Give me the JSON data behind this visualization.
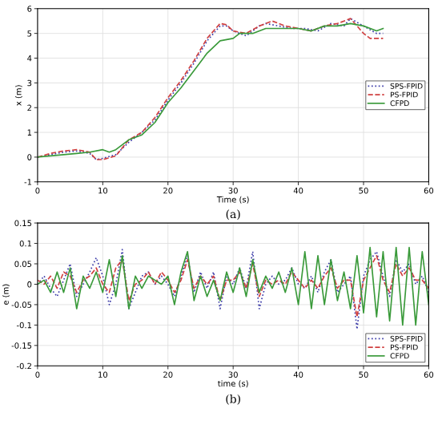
{
  "chart_data": [
    {
      "type": "line",
      "xlabel": "Time (s)",
      "ylabel": "x (m)",
      "annotations": [
        "(a)"
      ],
      "xlim": [
        0,
        60
      ],
      "xticks": [
        0,
        10,
        20,
        30,
        40,
        50,
        60
      ],
      "ylim": [
        -1,
        6
      ],
      "yticks": [
        -1,
        0,
        1,
        2,
        3,
        4,
        5,
        6
      ],
      "grid": true,
      "legend": "center right",
      "series": [
        {
          "name": "SPS-FPID",
          "color": "#3a3aa8",
          "line_style": "dotted",
          "x": [
            0,
            2,
            4,
            6,
            8,
            9,
            10,
            12,
            14,
            16,
            18,
            20,
            22,
            24,
            26,
            28,
            29,
            30,
            32,
            34,
            35,
            37,
            39,
            41,
            43,
            45,
            47,
            48,
            50,
            52,
            53
          ],
          "values": [
            0,
            0.1,
            0.2,
            0.25,
            0.15,
            -0.1,
            -0.05,
            0.1,
            0.6,
            1.0,
            1.5,
            2.3,
            3.0,
            3.8,
            4.7,
            5.3,
            5.3,
            5.1,
            4.9,
            5.3,
            5.4,
            5.3,
            5.2,
            5.2,
            5.1,
            5.4,
            5.3,
            5.6,
            5.3,
            5.0,
            5.0
          ]
        },
        {
          "name": "PS-FPID",
          "color": "#d04040",
          "line_style": "dashed",
          "x": [
            0,
            2,
            4,
            6,
            8,
            9,
            10,
            12,
            14,
            16,
            18,
            20,
            22,
            24,
            26,
            28,
            29,
            30,
            32,
            34,
            36,
            38,
            40,
            42,
            44,
            46,
            48,
            50,
            51,
            53
          ],
          "values": [
            0,
            0.15,
            0.25,
            0.3,
            0.2,
            -0.1,
            -0.1,
            0.05,
            0.7,
            1.0,
            1.6,
            2.4,
            3.1,
            3.9,
            4.8,
            5.4,
            5.35,
            5.1,
            5.0,
            5.3,
            5.5,
            5.3,
            5.2,
            5.1,
            5.3,
            5.4,
            5.6,
            5.0,
            4.8,
            4.8
          ]
        },
        {
          "name": "CFPD",
          "color": "#3a9a3a",
          "line_style": "solid",
          "x": [
            0,
            4,
            6,
            8,
            10,
            11,
            12,
            14,
            16,
            18,
            20,
            22,
            24,
            26,
            28,
            30,
            31,
            33,
            35,
            38,
            40,
            42,
            44,
            46,
            48,
            50,
            52,
            53
          ],
          "values": [
            0,
            0.1,
            0.15,
            0.2,
            0.3,
            0.2,
            0.3,
            0.7,
            0.9,
            1.4,
            2.2,
            2.8,
            3.5,
            4.2,
            4.7,
            4.8,
            5.0,
            5.0,
            5.2,
            5.2,
            5.2,
            5.1,
            5.3,
            5.3,
            5.4,
            5.3,
            5.1,
            5.2
          ]
        }
      ]
    },
    {
      "type": "line",
      "xlabel": "time (s)",
      "ylabel": "e (m)",
      "annotations": [
        "(b)"
      ],
      "xlim": [
        0,
        60
      ],
      "xticks": [
        0,
        10,
        20,
        30,
        40,
        50,
        60
      ],
      "ylim": [
        -0.2,
        0.15
      ],
      "yticks": [
        -0.2,
        -0.15,
        -0.1,
        -0.05,
        0,
        0.05,
        0.1,
        0.15
      ],
      "grid": true,
      "legend": "bottom right",
      "x": [
        0,
        1,
        2,
        3,
        4,
        5,
        6,
        7,
        8,
        9,
        10,
        11,
        12,
        13,
        14,
        15,
        16,
        17,
        18,
        19,
        20,
        21,
        22,
        23,
        24,
        25,
        26,
        27,
        28,
        29,
        30,
        31,
        32,
        33,
        34,
        35,
        36,
        37,
        38,
        39,
        40,
        41,
        42,
        43,
        44,
        45,
        46,
        47,
        48,
        49,
        50,
        51,
        52,
        53,
        54,
        55,
        56,
        57,
        58,
        59,
        60
      ],
      "series": [
        {
          "name": "SPS-FPID",
          "color": "#3a3aa8",
          "line_style": "dotted",
          "values": [
            0,
            0.02,
            -0.01,
            -0.03,
            0.01,
            0.05,
            -0.03,
            0,
            0.03,
            0.065,
            0.02,
            -0.05,
            0,
            0.085,
            -0.06,
            -0.02,
            0.02,
            0.03,
            0,
            0.02,
            0,
            -0.03,
            0.02,
            0.07,
            -0.02,
            0.03,
            -0.01,
            0.03,
            -0.06,
            0.02,
            0,
            0.04,
            -0.01,
            0.08,
            -0.06,
            0,
            0.02,
            0,
            0.01,
            0.04,
            0,
            -0.01,
            0.02,
            -0.02,
            0.03,
            0.06,
            -0.02,
            0,
            0.02,
            -0.11,
            0.02,
            0.06,
            0.08,
            0.02,
            -0.03,
            0.06,
            0.03,
            0.05,
            0,
            0.02,
            -0.02
          ]
        },
        {
          "name": "PS-FPID",
          "color": "#d04040",
          "line_style": "dashed",
          "values": [
            0.01,
            0,
            0.02,
            -0.01,
            0.03,
            0.02,
            -0.02,
            0.01,
            0.02,
            0.04,
            0,
            -0.02,
            0.04,
            0.06,
            -0.04,
            0,
            0.01,
            0.03,
            0,
            0.03,
            0.01,
            -0.02,
            0.01,
            0.06,
            -0.01,
            0.02,
            0,
            0.02,
            -0.04,
            0.01,
            0.01,
            0.03,
            -0.01,
            0.05,
            -0.03,
            0.01,
            0,
            0.01,
            0,
            0.03,
            0.01,
            -0.01,
            0.01,
            -0.01,
            0.02,
            0.04,
            -0.01,
            0.01,
            0.01,
            -0.08,
            0.01,
            0.04,
            0.07,
            0.01,
            -0.02,
            0.05,
            0.02,
            0.04,
            0.01,
            0.01,
            -0.01
          ]
        },
        {
          "name": "CFPD",
          "color": "#3a9a3a",
          "line_style": "solid",
          "values": [
            0,
            0.01,
            -0.02,
            0.03,
            -0.02,
            0.04,
            -0.06,
            0.02,
            -0.01,
            0.03,
            -0.02,
            0.06,
            -0.03,
            0.07,
            -0.06,
            0.02,
            -0.01,
            0.02,
            0.01,
            0,
            0.02,
            -0.05,
            0.03,
            0.08,
            -0.04,
            0.02,
            -0.03,
            0.01,
            -0.04,
            0.03,
            -0.02,
            0.04,
            -0.03,
            0.06,
            -0.02,
            0.02,
            -0.01,
            0.03,
            -0.02,
            0.04,
            -0.05,
            0.08,
            -0.06,
            0.07,
            -0.05,
            0.06,
            -0.04,
            0.03,
            -0.06,
            0.07,
            -0.07,
            0.09,
            -0.08,
            0.08,
            -0.09,
            0.09,
            -0.1,
            0.09,
            -0.1,
            0.08,
            -0.05
          ]
        }
      ]
    }
  ]
}
